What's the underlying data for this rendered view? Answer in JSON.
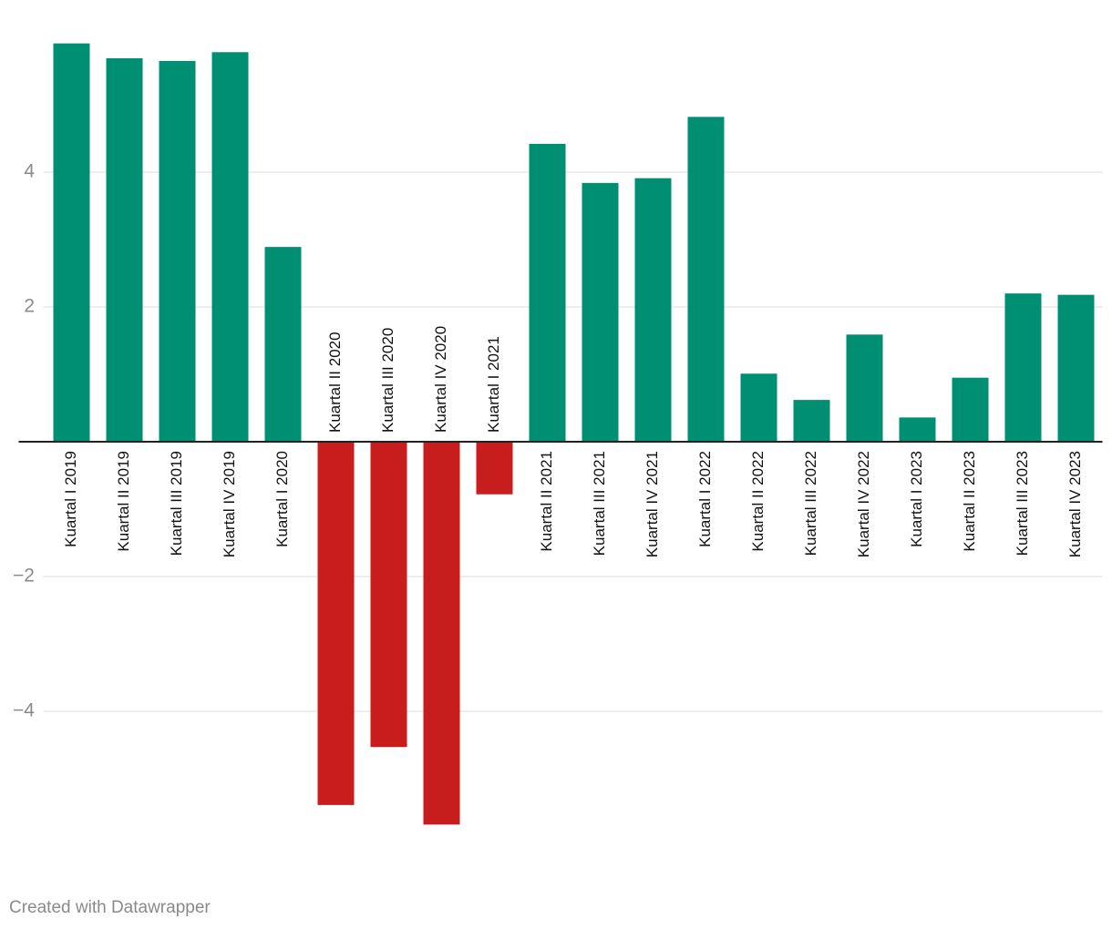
{
  "chart_data": {
    "type": "bar",
    "categories": [
      "Kuartal I 2019",
      "Kuartal II 2019",
      "Kuartal III 2019",
      "Kuartal IV 2019",
      "Kuartal I 2020",
      "Kuartal II 2020",
      "Kuartal III 2020",
      "Kuartal IV 2020",
      "Kuartal I 2021",
      "Kuartal II 2021",
      "Kuartal III 2021",
      "Kuartal IV 2021",
      "Kuartal I 2022",
      "Kuartal II 2022",
      "Kuartal III 2022",
      "Kuartal IV 2022",
      "Kuartal I 2023",
      "Kuartal II 2023",
      "Kuartal III 2023",
      "Kuartal IV 2023"
    ],
    "values": [
      5.91,
      5.69,
      5.65,
      5.78,
      2.89,
      -5.39,
      -4.53,
      -5.68,
      -0.78,
      4.42,
      3.84,
      3.91,
      4.82,
      1.01,
      0.62,
      1.59,
      0.36,
      0.95,
      2.2,
      2.18
    ],
    "colors": {
      "positive": "#008f72",
      "negative": "#c71e1d"
    },
    "ylim": [
      -6,
      6
    ],
    "yticks": [
      {
        "value": -4,
        "label": "−4"
      },
      {
        "value": -2,
        "label": "−2"
      },
      2,
      4
    ],
    "grid": true,
    "footer": "Created with Datawrapper"
  }
}
